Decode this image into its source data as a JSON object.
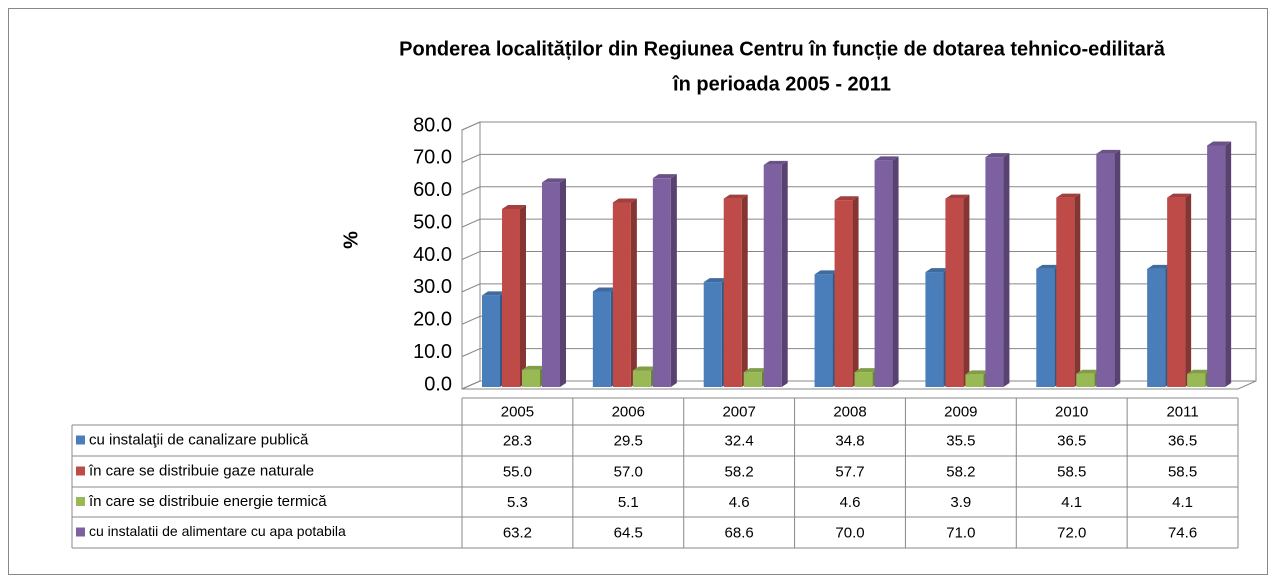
{
  "chart_data": {
    "type": "bar3d",
    "title": [
      "Ponderea localităților din Regiunea Centru în funcție de dotarea tehnico-edilitară",
      "în perioada 2005 - 2011"
    ],
    "ylabel": "%",
    "categories": [
      "2005",
      "2006",
      "2007",
      "2008",
      "2009",
      "2010",
      "2011"
    ],
    "series": [
      {
        "name": "cu instalaţii de canalizare publică",
        "color": "#4a7ebb",
        "values": [
          28.3,
          29.5,
          32.4,
          34.8,
          35.5,
          36.5,
          36.5
        ],
        "value_labels": [
          "28.3",
          "29.5",
          "32.4",
          "34.8",
          "35.5",
          "36.5",
          "36.5"
        ]
      },
      {
        "name": "în care se distribuie gaze  naturale",
        "color": "#be4b48",
        "values": [
          55.0,
          57.0,
          58.2,
          57.7,
          58.2,
          58.5,
          58.5
        ],
        "value_labels": [
          "55.0",
          "57.0",
          "58.2",
          "57.7",
          "58.2",
          "58.5",
          "58.5"
        ]
      },
      {
        "name": "în care se distribuie energie termică",
        "color": "#98b954",
        "values": [
          5.3,
          5.1,
          4.6,
          4.6,
          3.9,
          4.1,
          4.1
        ],
        "value_labels": [
          "5.3",
          "5.1",
          "4.6",
          "4.6",
          "3.9",
          "4.1",
          "4.1"
        ]
      },
      {
        "name": "cu instalatii de alimentare cu apa potabila",
        "color": "#7d60a0",
        "values": [
          63.2,
          64.5,
          68.6,
          70.0,
          71.0,
          72.0,
          74.6
        ],
        "value_labels": [
          "63.2",
          "64.5",
          "68.6",
          "70.0",
          "71.0",
          "72.0",
          "74.6"
        ]
      }
    ],
    "ylim": [
      0,
      80
    ],
    "yticks": [
      {
        "value": 0,
        "label": "0.0"
      },
      {
        "value": 10,
        "label": "10.0"
      },
      {
        "value": 20,
        "label": "20.0"
      },
      {
        "value": 30,
        "label": "30.0"
      },
      {
        "value": 40,
        "label": "40.0"
      },
      {
        "value": 50,
        "label": "50.0"
      },
      {
        "value": 60,
        "label": "60.0"
      },
      {
        "value": 70,
        "label": "70.0"
      },
      {
        "value": 80,
        "label": "80.0"
      }
    ],
    "grid": true
  }
}
